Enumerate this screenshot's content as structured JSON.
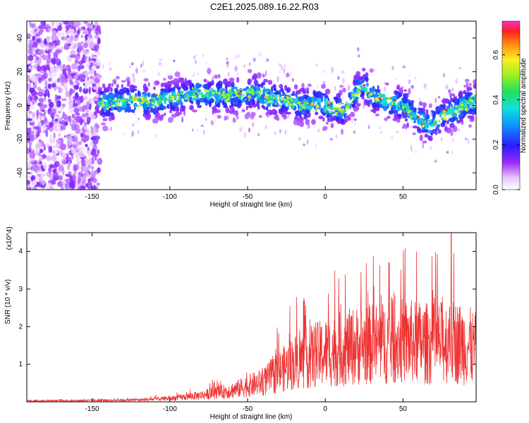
{
  "title": "C2E1.2025.089.16.22.R03",
  "chart_data": [
    {
      "type": "heatmap",
      "xlabel": "Height of straight line (km)",
      "ylabel": "Frequency (Hz)",
      "xlim": [
        -192,
        97
      ],
      "ylim": [
        -50,
        50
      ],
      "xticks": [
        -150,
        -100,
        -50,
        0,
        50
      ],
      "yticks": [
        -40,
        -20,
        0,
        20,
        40
      ],
      "colorbar": {
        "label": "Normalized spectral amplitude",
        "range": [
          0.0,
          0.75
        ],
        "ticks": [
          "0.0",
          "0.2",
          "0.4",
          "0.6"
        ],
        "tick_values": [
          0.0,
          0.2,
          0.4,
          0.6
        ]
      },
      "noise_region_x": [
        -192,
        -145
      ],
      "ridge": {
        "x": [
          -145,
          -130,
          -115,
          -100,
          -85,
          -70,
          -55,
          -45,
          -35,
          -25,
          -15,
          -5,
          5,
          12,
          20,
          25,
          30,
          40,
          50,
          60,
          67,
          75,
          85,
          97
        ],
        "y": [
          1,
          3,
          2,
          4,
          7,
          6,
          6,
          8,
          4,
          3,
          0,
          1,
          -1,
          -3,
          8,
          12,
          6,
          3,
          0,
          -8,
          -12,
          -6,
          -2,
          3
        ]
      },
      "grid": false
    },
    {
      "type": "line",
      "xlabel": "Height of straight line (km)",
      "ylabel": "SNR (10 * v/v)",
      "y_multiplier": "(x10^4)",
      "xlim": [
        -192,
        97
      ],
      "ylim": [
        0,
        4.5
      ],
      "xticks": [
        -150,
        -100,
        -50,
        0,
        50
      ],
      "yticks": [
        1,
        2,
        3,
        4
      ],
      "series": [
        {
          "color": "#ee3333",
          "envelope_x": [
            -192,
            -150,
            -120,
            -100,
            -80,
            -60,
            -40,
            -30,
            -20,
            -10,
            0,
            10,
            20,
            30,
            40,
            50,
            60,
            70,
            80,
            90,
            97
          ],
          "envelope_y": [
            0.03,
            0.04,
            0.06,
            0.1,
            0.2,
            0.35,
            0.6,
            0.9,
            1.2,
            1.35,
            1.5,
            1.6,
            1.7,
            1.75,
            1.8,
            1.85,
            1.8,
            1.75,
            1.85,
            1.75,
            1.6
          ],
          "peak_x": 81,
          "peak_y": 4.5
        }
      ],
      "grid": false
    }
  ]
}
